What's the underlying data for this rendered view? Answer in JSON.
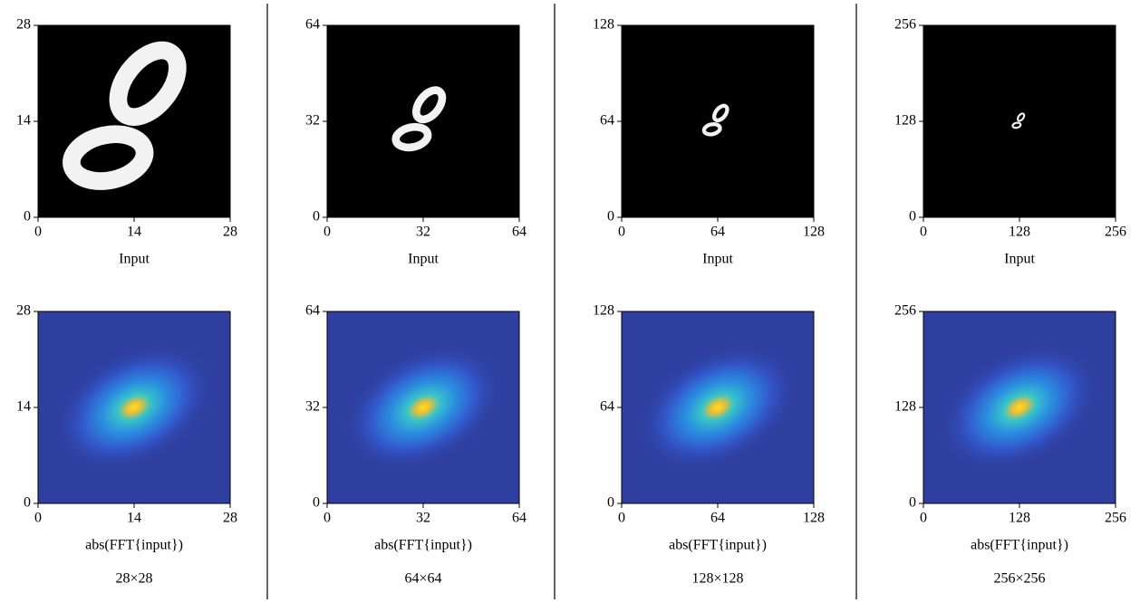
{
  "chart_data": [
    {
      "type": "image",
      "content": "digit",
      "xlabel": "Input",
      "xlim": [
        0,
        28
      ],
      "ylim": [
        0,
        28
      ],
      "xticks": [
        0,
        14,
        28
      ],
      "yticks": [
        0,
        14,
        28
      ]
    },
    {
      "type": "image",
      "content": "fft",
      "xlabel": "abs(FFT{input})",
      "xlim": [
        0,
        28
      ],
      "ylim": [
        0,
        28
      ],
      "xticks": [
        0,
        14,
        28
      ],
      "yticks": [
        0,
        14,
        28
      ]
    },
    {
      "type": "image",
      "content": "digit",
      "xlabel": "Input",
      "xlim": [
        0,
        64
      ],
      "ylim": [
        0,
        64
      ],
      "xticks": [
        0,
        32,
        64
      ],
      "yticks": [
        0,
        32,
        64
      ]
    },
    {
      "type": "image",
      "content": "fft",
      "xlabel": "abs(FFT{input})",
      "xlim": [
        0,
        64
      ],
      "ylim": [
        0,
        64
      ],
      "xticks": [
        0,
        32,
        64
      ],
      "yticks": [
        0,
        32,
        64
      ]
    },
    {
      "type": "image",
      "content": "digit",
      "xlabel": "Input",
      "xlim": [
        0,
        128
      ],
      "ylim": [
        0,
        128
      ],
      "xticks": [
        0,
        64,
        128
      ],
      "yticks": [
        0,
        64,
        128
      ]
    },
    {
      "type": "image",
      "content": "fft",
      "xlabel": "abs(FFT{input})",
      "xlim": [
        0,
        128
      ],
      "ylim": [
        0,
        128
      ],
      "xticks": [
        0,
        64,
        128
      ],
      "yticks": [
        0,
        64,
        128
      ]
    },
    {
      "type": "image",
      "content": "digit",
      "xlabel": "Input",
      "xlim": [
        0,
        256
      ],
      "ylim": [
        0,
        256
      ],
      "xticks": [
        0,
        128,
        256
      ],
      "yticks": [
        0,
        128,
        256
      ]
    },
    {
      "type": "image",
      "content": "fft",
      "xlabel": "abs(FFT{input})",
      "xlim": [
        0,
        256
      ],
      "ylim": [
        0,
        256
      ],
      "xticks": [
        0,
        128,
        256
      ],
      "yticks": [
        0,
        128,
        256
      ]
    }
  ],
  "captions": [
    "28×28",
    "64×64",
    "128×128",
    "256×256"
  ]
}
